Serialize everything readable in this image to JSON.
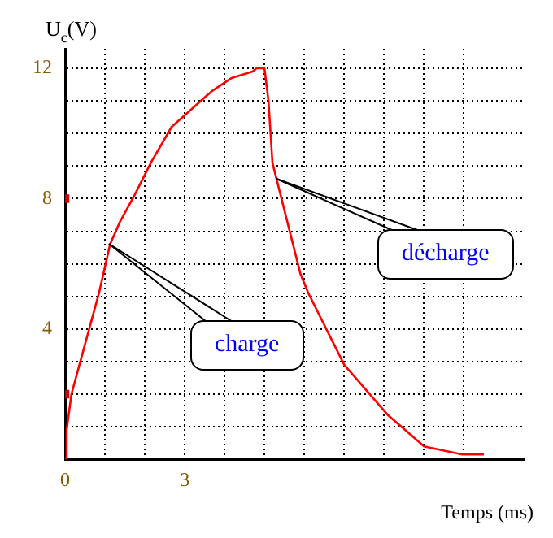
{
  "chart_data": {
    "type": "line",
    "xlabel": "Temps (ms)",
    "ylabel": "U$_{c}$(V)",
    "xlim": [
      0,
      11.5
    ],
    "ylim": [
      0,
      12.6
    ],
    "xticks": [
      0,
      {
        "value": 1,
        "label": null
      },
      {
        "value": 2,
        "label": null
      },
      3,
      {
        "value": 4,
        "label": null
      },
      {
        "value": 5,
        "label": null
      },
      {
        "value": 6,
        "label": null
      },
      {
        "value": 7,
        "label": null
      },
      {
        "value": 8,
        "label": null
      },
      {
        "value": 9,
        "label": null
      },
      {
        "value": 10,
        "label": null
      }
    ],
    "yticks": [
      {
        "value": 0,
        "label": null
      },
      {
        "value": 1,
        "label": null
      },
      {
        "value": 2,
        "label": null
      },
      {
        "value": 3,
        "label": null
      },
      4,
      {
        "value": 5,
        "label": null
      },
      {
        "value": 6,
        "label": null
      },
      {
        "value": 7,
        "label": null
      },
      8,
      {
        "value": 9,
        "label": null
      },
      {
        "value": 10,
        "label": null
      },
      {
        "value": 11,
        "label": null
      },
      12
    ],
    "grid": true,
    "legend": false,
    "marker": "none",
    "line_style": "solid",
    "series": [
      {
        "color": "#ff0000",
        "x": [
          0,
          0.04,
          0.16,
          0.36,
          0.85,
          1.13,
          1.38,
          1.74,
          2.15,
          2.67,
          3.68,
          4.17,
          4.7,
          4.8,
          5.0,
          5.1,
          5.2,
          5.9,
          6.1,
          7.0,
          8.1,
          9.0,
          9.96,
          10.5
        ],
        "values": [
          0,
          0.9,
          2,
          2.9,
          5.1,
          6.6,
          7.3,
          8.1,
          9.1,
          10.2,
          11.3,
          11.7,
          11.9,
          12,
          12,
          11,
          9.1,
          5.7,
          5.1,
          2.9,
          1.35,
          0.4,
          0.15,
          0.15
        ]
      },
      {
        "type": "scatter",
        "color": "#cc0000",
        "marker": "square",
        "x": [
          0,
          0
        ],
        "values": [
          8,
          2
        ]
      }
    ],
    "annotations": [
      {
        "text": "charge",
        "x": 1.1,
        "y": 6.6
      },
      {
        "text": "décharge",
        "x": 5.3,
        "y": 8.6
      }
    ]
  }
}
